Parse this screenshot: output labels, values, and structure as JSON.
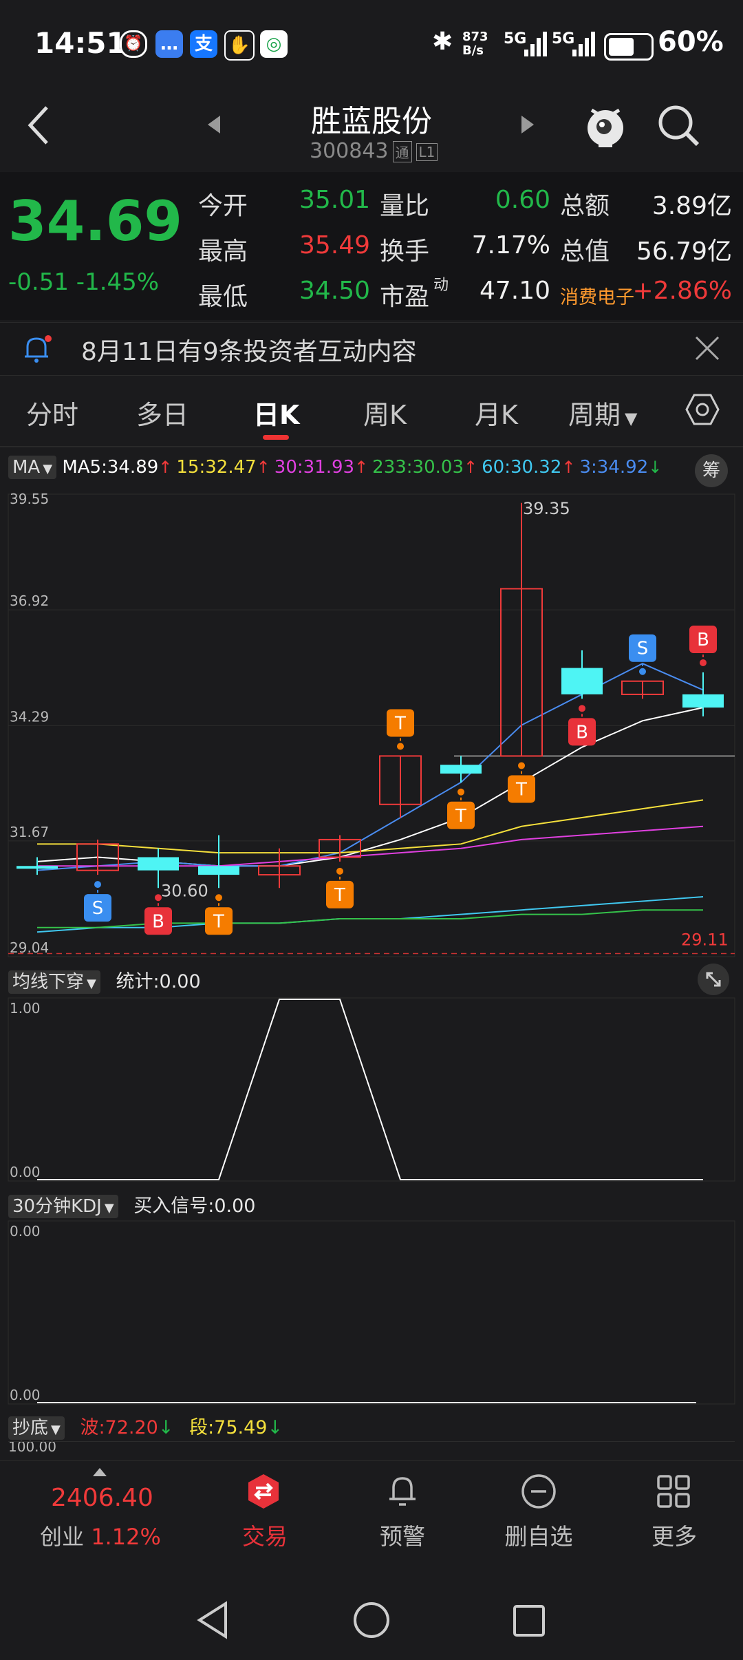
{
  "status_bar": {
    "time": "14:51",
    "net_speed": "873\nB/s",
    "network": "5G",
    "battery": "60%",
    "icons": [
      "alarm-icon",
      "messages-icon",
      "alipay-icon",
      "gesture-icon",
      "mobile-app-icon",
      "bluetooth-icon",
      "signal-icon",
      "battery-icon"
    ]
  },
  "header": {
    "stock_name": "胜蓝股份",
    "stock_code": "300843",
    "badge_tong": "通",
    "badge_l1": "L1"
  },
  "quote": {
    "price": "34.69",
    "change": "-0.51",
    "change_pct": "-1.45%",
    "rows": [
      {
        "l1": "今开",
        "v1": "35.01",
        "c1": "green",
        "l2": "量比",
        "v2": "0.60",
        "c2": "green",
        "l3": "总额",
        "v3": "3.89亿",
        "c3": "white"
      },
      {
        "l1": "最高",
        "v1": "35.49",
        "c1": "red",
        "l2": "换手",
        "v2": "7.17%",
        "c2": "white",
        "l3": "总值",
        "v3": "56.79亿",
        "c3": "white"
      },
      {
        "l1": "最低",
        "v1": "34.50",
        "c1": "green",
        "l2": "市盈",
        "v2": "47.10",
        "c2": "white",
        "l3": "消费电子",
        "v3": "+2.86%",
        "c3": "red"
      }
    ],
    "pe_superscript": "动"
  },
  "notice": {
    "text": "8月11日有9条投资者互动内容"
  },
  "tabs": [
    "分时",
    "多日",
    "日K",
    "周K",
    "月K",
    "周期"
  ],
  "active_tab": 2,
  "ma": {
    "selector": "MA",
    "items": [
      {
        "label": "MA5:34.89",
        "arrow": "↑",
        "color": "#ffffff",
        "arrow_color": "#f03a3a"
      },
      {
        "label": "15:32.47",
        "arrow": "↑",
        "color": "#f5e03c",
        "arrow_color": "#f03a3a"
      },
      {
        "label": "30:31.93",
        "arrow": "↑",
        "color": "#e040e0",
        "arrow_color": "#f03a3a"
      },
      {
        "label": "233:30.03",
        "arrow": "↑",
        "color": "#35c24a",
        "arrow_color": "#f03a3a"
      },
      {
        "label": "60:30.32",
        "arrow": "↑",
        "color": "#40c8f0",
        "arrow_color": "#f03a3a"
      },
      {
        "label": "3:34.92",
        "arrow": "↓",
        "color": "#4a8cf0",
        "arrow_color": "#22b84a"
      }
    ],
    "chou_button": "筹"
  },
  "chart_data": {
    "type": "candlestick",
    "y_ticks": [
      "39.55",
      "36.92",
      "34.29",
      "31.67",
      "29.04"
    ],
    "ylim": [
      29.04,
      39.55
    ],
    "high_label": "39.35",
    "low_label": "30.60",
    "right_label": "29.11",
    "candles": [
      {
        "o": 31.1,
        "c": 31.1,
        "h": 31.3,
        "l": 30.9,
        "up": false
      },
      {
        "o": 31.0,
        "c": 31.6,
        "h": 31.7,
        "l": 30.9,
        "up": true
      },
      {
        "o": 31.3,
        "c": 31.0,
        "h": 31.5,
        "l": 30.6,
        "up": false
      },
      {
        "o": 31.1,
        "c": 30.9,
        "h": 31.8,
        "l": 30.6,
        "up": false
      },
      {
        "o": 30.9,
        "c": 31.1,
        "h": 31.5,
        "l": 30.6,
        "up": true
      },
      {
        "o": 31.3,
        "c": 31.7,
        "h": 31.8,
        "l": 31.2,
        "up": true
      },
      {
        "o": 32.5,
        "c": 33.6,
        "h": 33.6,
        "l": 32.2,
        "up": true
      },
      {
        "o": 33.4,
        "c": 33.2,
        "h": 33.6,
        "l": 33.0,
        "up": false
      },
      {
        "o": 33.6,
        "c": 37.4,
        "h": 39.35,
        "l": 33.6,
        "up": true
      },
      {
        "o": 35.6,
        "c": 35.0,
        "h": 36.0,
        "l": 34.9,
        "up": false
      },
      {
        "o": 35.0,
        "c": 35.3,
        "h": 35.3,
        "l": 34.9,
        "up": true
      },
      {
        "o": 35.0,
        "c": 34.7,
        "h": 35.5,
        "l": 34.5,
        "up": false
      }
    ],
    "signals": [
      {
        "i": 1,
        "t": "S",
        "pos": "below"
      },
      {
        "i": 2,
        "t": "B",
        "pos": "below"
      },
      {
        "i": 3,
        "t": "T",
        "pos": "below"
      },
      {
        "i": 5,
        "t": "T",
        "pos": "below"
      },
      {
        "i": 6,
        "t": "T",
        "pos": "above"
      },
      {
        "i": 7,
        "t": "T",
        "pos": "below"
      },
      {
        "i": 8,
        "t": "T",
        "pos": "below"
      },
      {
        "i": 9,
        "t": "B",
        "pos": "below"
      },
      {
        "i": 10,
        "t": "S",
        "pos": "above"
      },
      {
        "i": 11,
        "t": "B",
        "pos": "above"
      }
    ],
    "ma_lines": {
      "ma5": [
        31.2,
        31.3,
        31.2,
        31.1,
        31.1,
        31.3,
        31.7,
        32.2,
        33.0,
        33.8,
        34.4,
        34.7
      ],
      "ma3": [
        31.0,
        31.1,
        31.2,
        31.1,
        31.1,
        31.4,
        32.2,
        33.0,
        34.3,
        35.0,
        35.7,
        35.1
      ],
      "ma15": [
        31.6,
        31.6,
        31.5,
        31.4,
        31.4,
        31.4,
        31.5,
        31.6,
        32.0,
        32.2,
        32.4,
        32.6
      ],
      "ma30": [
        31.1,
        31.1,
        31.1,
        31.1,
        31.2,
        31.3,
        31.4,
        31.5,
        31.7,
        31.8,
        31.9,
        32.0
      ],
      "ma60": [
        29.6,
        29.7,
        29.7,
        29.8,
        29.8,
        29.9,
        29.9,
        30.0,
        30.1,
        30.2,
        30.3,
        30.4
      ],
      "ma233": [
        29.7,
        29.7,
        29.8,
        29.8,
        29.8,
        29.9,
        29.9,
        29.9,
        30.0,
        30.0,
        30.1,
        30.1
      ]
    }
  },
  "indicator1": {
    "selector": "均线下穿",
    "stat": "统计:0.00",
    "y_top": "1.00",
    "y_bottom": "0.00",
    "values": [
      0,
      0,
      0,
      0,
      1,
      1,
      0,
      0,
      0,
      0,
      0,
      0
    ]
  },
  "indicator2": {
    "selector": "30分钟KDJ",
    "stat": "买入信号:0.00",
    "y_top": "0.00",
    "y_bottom": "0.00"
  },
  "indicator3": {
    "selector": "抄底",
    "bo": "波:72.20",
    "duan": "段:75.49",
    "y_top": "100.00"
  },
  "bottom_nav": {
    "index_value": "2406.40",
    "index_name": "创业",
    "index_pct": "1.12%",
    "items": [
      "交易",
      "预警",
      "删自选",
      "更多"
    ]
  }
}
